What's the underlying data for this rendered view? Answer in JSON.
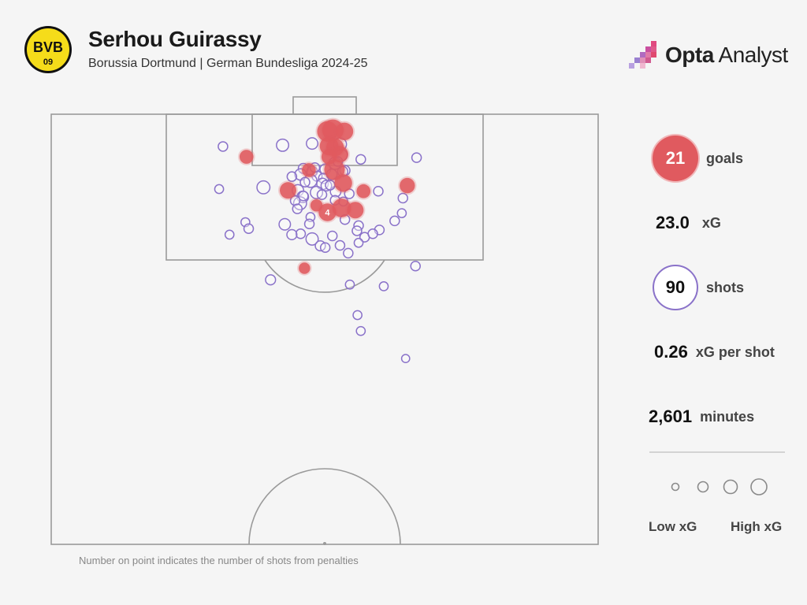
{
  "header": {
    "title": "Serhou Guirassy",
    "subtitle": "Borussia Dortmund | German Bundesliga 2024-25",
    "club_logo_text": "BVB",
    "club_logo_year": "09",
    "brand_bold": "Opta",
    "brand_light": " Analyst"
  },
  "stats": {
    "goals_value": "21",
    "goals_label": "goals",
    "xg_value": "23.0",
    "xg_label": "xG",
    "shots_value": "90",
    "shots_label": "shots",
    "xg_per_shot_value": "0.26",
    "xg_per_shot_label": "xG per shot",
    "minutes_value": "2,601",
    "minutes_label": "minutes"
  },
  "legend": {
    "low": "Low xG",
    "high": "High xG"
  },
  "footnote": "Number on point indicates the number of shots from penalties",
  "colors": {
    "goal": "#e05a5f",
    "shot": "#8a72c9",
    "pitch_line": "#9a9a9a",
    "background": "#f5f5f5"
  },
  "chart_data": {
    "type": "scatter",
    "title": "Serhou Guirassy",
    "subtitle": "Borussia Dortmund | German Bundesliga 2024-25",
    "x_unit": "pitch width (0-100, left to right)",
    "y_unit": "distance from goal line (0-100)",
    "size_encodes": "xG",
    "color_encodes": "outcome (goal / no goal)",
    "series": [
      {
        "name": "goals",
        "points": [
          {
            "x": 50.5,
            "y": 4.0,
            "xg": 0.45
          },
          {
            "x": 51.5,
            "y": 3.7,
            "xg": 0.5
          },
          {
            "x": 53.6,
            "y": 4.0,
            "xg": 0.3
          },
          {
            "x": 50.8,
            "y": 7.4,
            "xg": 0.35
          },
          {
            "x": 51.9,
            "y": 7.7,
            "xg": 0.3
          },
          {
            "x": 52.8,
            "y": 9.3,
            "xg": 0.25
          },
          {
            "x": 50.8,
            "y": 9.9,
            "xg": 0.2
          },
          {
            "x": 35.7,
            "y": 9.9,
            "xg": 0.15
          },
          {
            "x": 47.1,
            "y": 13.0,
            "xg": 0.15
          },
          {
            "x": 51.8,
            "y": 12.9,
            "xg": 0.45
          },
          {
            "x": 53.4,
            "y": 16.0,
            "xg": 0.3
          },
          {
            "x": 43.3,
            "y": 17.7,
            "xg": 0.25
          },
          {
            "x": 65.1,
            "y": 16.6,
            "xg": 0.2
          },
          {
            "x": 57.1,
            "y": 17.9,
            "xg": 0.15
          },
          {
            "x": 48.5,
            "y": 21.2,
            "xg": 0.1
          },
          {
            "x": 50.5,
            "y": 22.8,
            "xg": 0.3,
            "penalties": "4"
          },
          {
            "x": 53.1,
            "y": 21.8,
            "xg": 0.35
          },
          {
            "x": 55.6,
            "y": 22.3,
            "xg": 0.25
          },
          {
            "x": 46.3,
            "y": 35.8,
            "xg": 0.08
          }
        ]
      },
      {
        "name": "shots",
        "points": [
          {
            "x": 31.4,
            "y": 7.5,
            "xg": 0.04
          },
          {
            "x": 42.3,
            "y": 7.2,
            "xg": 0.1
          },
          {
            "x": 47.7,
            "y": 6.8,
            "xg": 0.08
          },
          {
            "x": 52.8,
            "y": 7.0,
            "xg": 0.12
          },
          {
            "x": 53.1,
            "y": 9.5,
            "xg": 0.08
          },
          {
            "x": 56.6,
            "y": 10.5,
            "xg": 0.04
          },
          {
            "x": 66.8,
            "y": 10.1,
            "xg": 0.04
          },
          {
            "x": 51.9,
            "y": 11.4,
            "xg": 0.1
          },
          {
            "x": 46.1,
            "y": 12.6,
            "xg": 0.05
          },
          {
            "x": 47.7,
            "y": 13.3,
            "xg": 0.06
          },
          {
            "x": 50.1,
            "y": 12.8,
            "xg": 0.06
          },
          {
            "x": 53.7,
            "y": 13.1,
            "xg": 0.05
          },
          {
            "x": 45.6,
            "y": 14.0,
            "xg": 0.08
          },
          {
            "x": 48.6,
            "y": 14.4,
            "xg": 0.05
          },
          {
            "x": 49.8,
            "y": 14.9,
            "xg": 0.05
          },
          {
            "x": 51.3,
            "y": 14.0,
            "xg": 0.06
          },
          {
            "x": 53.3,
            "y": 13.3,
            "xg": 0.05
          },
          {
            "x": 47.4,
            "y": 15.5,
            "xg": 0.12
          },
          {
            "x": 49.6,
            "y": 16.2,
            "xg": 0.08
          },
          {
            "x": 38.8,
            "y": 17.0,
            "xg": 0.12
          },
          {
            "x": 30.7,
            "y": 17.4,
            "xg": 0.03
          },
          {
            "x": 45.1,
            "y": 17.7,
            "xg": 0.08
          },
          {
            "x": 48.5,
            "y": 18.2,
            "xg": 0.1
          },
          {
            "x": 50.3,
            "y": 16.6,
            "xg": 0.06
          },
          {
            "x": 52.0,
            "y": 18.0,
            "xg": 0.06
          },
          {
            "x": 46.0,
            "y": 19.2,
            "xg": 0.08
          },
          {
            "x": 45.5,
            "y": 20.7,
            "xg": 0.12
          },
          {
            "x": 51.9,
            "y": 20.0,
            "xg": 0.04
          },
          {
            "x": 53.4,
            "y": 20.3,
            "xg": 0.03
          },
          {
            "x": 59.8,
            "y": 17.9,
            "xg": 0.04
          },
          {
            "x": 64.3,
            "y": 19.5,
            "xg": 0.04
          },
          {
            "x": 47.4,
            "y": 23.9,
            "xg": 0.03
          },
          {
            "x": 53.7,
            "y": 24.5,
            "xg": 0.04
          },
          {
            "x": 35.5,
            "y": 25.1,
            "xg": 0.03
          },
          {
            "x": 42.7,
            "y": 25.6,
            "xg": 0.08
          },
          {
            "x": 64.1,
            "y": 23.0,
            "xg": 0.03
          },
          {
            "x": 62.8,
            "y": 24.8,
            "xg": 0.04
          },
          {
            "x": 36.1,
            "y": 26.6,
            "xg": 0.04
          },
          {
            "x": 47.2,
            "y": 25.5,
            "xg": 0.04
          },
          {
            "x": 56.2,
            "y": 25.9,
            "xg": 0.04
          },
          {
            "x": 45.6,
            "y": 27.8,
            "xg": 0.04
          },
          {
            "x": 60.0,
            "y": 26.9,
            "xg": 0.04
          },
          {
            "x": 32.6,
            "y": 28.0,
            "xg": 0.03
          },
          {
            "x": 44.0,
            "y": 28.0,
            "xg": 0.05
          },
          {
            "x": 51.4,
            "y": 28.3,
            "xg": 0.04
          },
          {
            "x": 55.9,
            "y": 27.1,
            "xg": 0.04
          },
          {
            "x": 57.3,
            "y": 28.6,
            "xg": 0.04
          },
          {
            "x": 58.8,
            "y": 27.8,
            "xg": 0.04
          },
          {
            "x": 47.7,
            "y": 29.0,
            "xg": 0.1
          },
          {
            "x": 49.2,
            "y": 30.6,
            "xg": 0.05
          },
          {
            "x": 50.1,
            "y": 31.0,
            "xg": 0.04
          },
          {
            "x": 52.8,
            "y": 30.5,
            "xg": 0.04
          },
          {
            "x": 56.2,
            "y": 29.9,
            "xg": 0.03
          },
          {
            "x": 54.3,
            "y": 32.3,
            "xg": 0.04
          },
          {
            "x": 66.6,
            "y": 35.3,
            "xg": 0.04
          },
          {
            "x": 40.1,
            "y": 38.5,
            "xg": 0.05
          },
          {
            "x": 54.6,
            "y": 39.6,
            "xg": 0.03
          },
          {
            "x": 60.8,
            "y": 40.0,
            "xg": 0.03
          },
          {
            "x": 56.0,
            "y": 46.7,
            "xg": 0.03
          },
          {
            "x": 56.6,
            "y": 50.4,
            "xg": 0.03
          },
          {
            "x": 64.8,
            "y": 56.8,
            "xg": 0.02
          },
          {
            "x": 46.1,
            "y": 19.0,
            "xg": 0.04
          },
          {
            "x": 44.6,
            "y": 20.1,
            "xg": 0.04
          },
          {
            "x": 48.2,
            "y": 12.4,
            "xg": 0.04
          },
          {
            "x": 52.4,
            "y": 11.0,
            "xg": 0.04
          },
          {
            "x": 44.0,
            "y": 14.5,
            "xg": 0.04
          },
          {
            "x": 49.5,
            "y": 18.7,
            "xg": 0.04
          },
          {
            "x": 46.4,
            "y": 15.8,
            "xg": 0.04
          },
          {
            "x": 51.0,
            "y": 16.5,
            "xg": 0.04
          },
          {
            "x": 54.5,
            "y": 18.5,
            "xg": 0.04
          },
          {
            "x": 45.0,
            "y": 22.0,
            "xg": 0.04
          }
        ]
      }
    ],
    "xlim": [
      0,
      100
    ],
    "ylim": [
      0,
      100
    ],
    "legend": "right",
    "grid": false
  }
}
